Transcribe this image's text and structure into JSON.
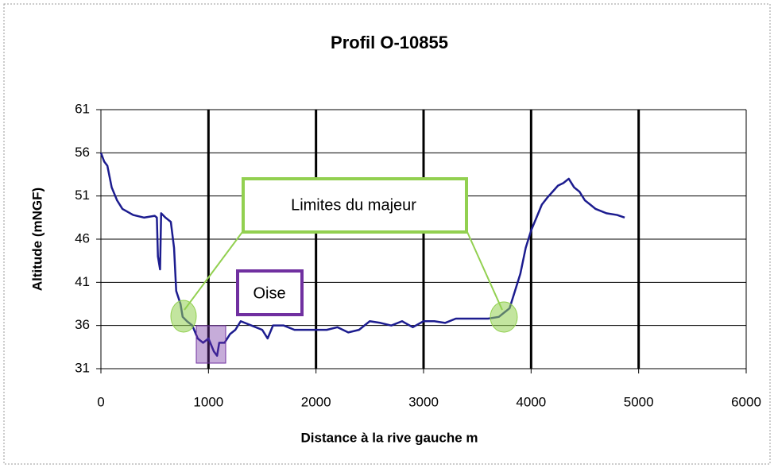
{
  "chart_data": {
    "type": "line",
    "title": "Profil O-10855",
    "xlabel": "Distance à la rive gauche m",
    "ylabel": "Altitude (mNGF)",
    "annotations": [
      "Limites du majeur",
      "Oise"
    ],
    "xlim": [
      0,
      6000
    ],
    "xticks": [
      0,
      1000,
      2000,
      3000,
      4000,
      5000,
      6000
    ],
    "ylim": [
      31,
      61
    ],
    "yticks": [
      31,
      36,
      41,
      46,
      51,
      56,
      61
    ],
    "grid": true,
    "x": [
      0,
      30,
      60,
      100,
      150,
      200,
      300,
      400,
      500,
      520,
      530,
      550,
      560,
      600,
      650,
      680,
      700,
      740,
      760,
      800,
      850,
      900,
      950,
      1000,
      1050,
      1080,
      1100,
      1150,
      1200,
      1250,
      1300,
      1400,
      1500,
      1550,
      1600,
      1700,
      1800,
      1900,
      2000,
      2100,
      2200,
      2300,
      2400,
      2500,
      2600,
      2700,
      2800,
      2900,
      3000,
      3100,
      3200,
      3300,
      3400,
      3500,
      3600,
      3700,
      3800,
      3850,
      3900,
      3950,
      4000,
      4050,
      4100,
      4150,
      4200,
      4250,
      4300,
      4350,
      4400,
      4450,
      4500,
      4550,
      4600,
      4700,
      4800,
      4870
    ],
    "series": [
      {
        "color": "#1c1c8f",
        "values": [
          56,
          55,
          54.5,
          52,
          50.5,
          49.5,
          48.8,
          48.5,
          48.7,
          48.5,
          44,
          42.5,
          49,
          48.5,
          48,
          45,
          40,
          38.5,
          37,
          36.5,
          36,
          34.5,
          34,
          34.5,
          33,
          32.5,
          34,
          34,
          35,
          35.5,
          36.5,
          36,
          35.5,
          34.5,
          36,
          36,
          35.5,
          35.5,
          35.5,
          35.5,
          35.8,
          35.2,
          35.5,
          36.5,
          36.3,
          36,
          36.5,
          35.8,
          36.5,
          36.5,
          36.3,
          36.8,
          36.8,
          36.8,
          36.8,
          37,
          38,
          40,
          42,
          45,
          47,
          48.5,
          50,
          50.8,
          51.5,
          52.2,
          52.5,
          53,
          52,
          51.5,
          50.5,
          50,
          49.5,
          49,
          48.8,
          48.5
        ]
      }
    ]
  }
}
